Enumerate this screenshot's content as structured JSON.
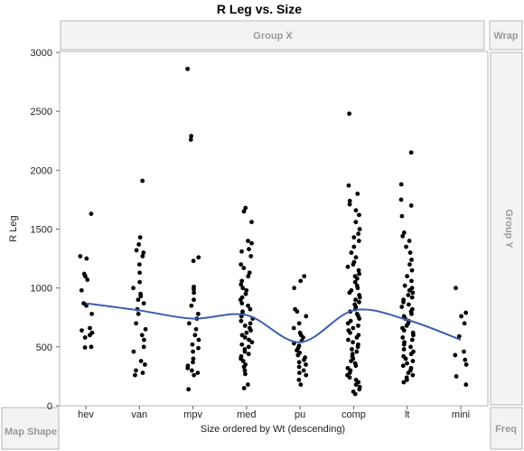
{
  "chart_data": {
    "type": "scatter",
    "title": "R Leg vs. Size",
    "xlabel": "Size ordered by Wt (descending)",
    "ylabel": "R Leg",
    "categories": [
      "hev",
      "van",
      "mpv",
      "med",
      "pu",
      "comp",
      "lt",
      "mini"
    ],
    "yticks": [
      0,
      500,
      1000,
      1500,
      2000,
      2500,
      3000
    ],
    "ylim": [
      0,
      3000
    ],
    "grid": false,
    "points": {
      "hev": [
        1630,
        1270,
        1250,
        1120,
        1100,
        1070,
        980,
        870,
        850,
        780,
        660,
        640,
        620,
        600,
        580,
        500,
        495
      ],
      "van": [
        1910,
        1430,
        1370,
        1320,
        1300,
        1270,
        1200,
        1130,
        1050,
        1000,
        950,
        930,
        900,
        870,
        820,
        780,
        700,
        650,
        600,
        560,
        500,
        460,
        380,
        350,
        300,
        280,
        260
      ],
      "mpv": [
        2860,
        2290,
        2260,
        1260,
        1230,
        1010,
        990,
        960,
        900,
        850,
        780,
        740,
        700,
        650,
        600,
        560,
        520,
        490,
        460,
        400,
        370,
        340,
        320,
        300,
        280,
        260,
        140
      ],
      "med": [
        1680,
        1650,
        1560,
        1400,
        1380,
        1330,
        1310,
        1270,
        1200,
        1170,
        1130,
        1100,
        1060,
        1030,
        1000,
        980,
        950,
        920,
        900,
        870,
        850,
        820,
        800,
        780,
        760,
        740,
        720,
        700,
        680,
        660,
        640,
        620,
        600,
        580,
        560,
        540,
        520,
        500,
        480,
        460,
        440,
        420,
        400,
        380,
        350,
        330,
        300,
        270,
        180,
        150
      ],
      "pu": [
        1100,
        1060,
        1000,
        820,
        800,
        760,
        700,
        660,
        620,
        600,
        580,
        550,
        530,
        510,
        490,
        470,
        450,
        430,
        410,
        390,
        370,
        350,
        330,
        300,
        280,
        260,
        220,
        180
      ],
      "comp": [
        2480,
        1870,
        1800,
        1740,
        1710,
        1660,
        1620,
        1560,
        1500,
        1460,
        1430,
        1400,
        1350,
        1300,
        1260,
        1220,
        1200,
        1180,
        1150,
        1120,
        1100,
        1080,
        1050,
        1020,
        1000,
        980,
        960,
        940,
        920,
        900,
        880,
        860,
        840,
        820,
        800,
        780,
        760,
        740,
        720,
        700,
        680,
        660,
        640,
        620,
        600,
        580,
        560,
        540,
        520,
        500,
        480,
        460,
        440,
        420,
        400,
        380,
        360,
        340,
        320,
        300,
        280,
        260,
        240,
        220,
        200,
        180,
        160,
        140,
        120,
        100
      ],
      "lt": [
        2150,
        1880,
        1750,
        1700,
        1610,
        1470,
        1440,
        1400,
        1350,
        1300,
        1240,
        1200,
        1150,
        1100,
        1060,
        1020,
        1000,
        980,
        960,
        940,
        920,
        900,
        880,
        860,
        840,
        820,
        800,
        780,
        760,
        740,
        720,
        700,
        680,
        660,
        640,
        620,
        600,
        580,
        560,
        540,
        520,
        500,
        480,
        460,
        440,
        420,
        400,
        380,
        360,
        340,
        320,
        300,
        280,
        260,
        240,
        220,
        200
      ],
      "mini": [
        1000,
        790,
        760,
        700,
        590,
        460,
        430,
        390,
        350,
        250,
        180
      ]
    },
    "smoother": {
      "x": [
        "hev",
        "van",
        "mpv",
        "med",
        "pu",
        "comp",
        "lt",
        "mini"
      ],
      "y": [
        870,
        810,
        740,
        770,
        540,
        810,
        730,
        560
      ]
    },
    "series_color": "#000000",
    "smoother_color": "#3c5fae"
  },
  "zones": {
    "group_x": "Group X",
    "group_y": "Group Y",
    "wrap": "Wrap",
    "map_shape": "Map Shape",
    "freq": "Freq"
  }
}
